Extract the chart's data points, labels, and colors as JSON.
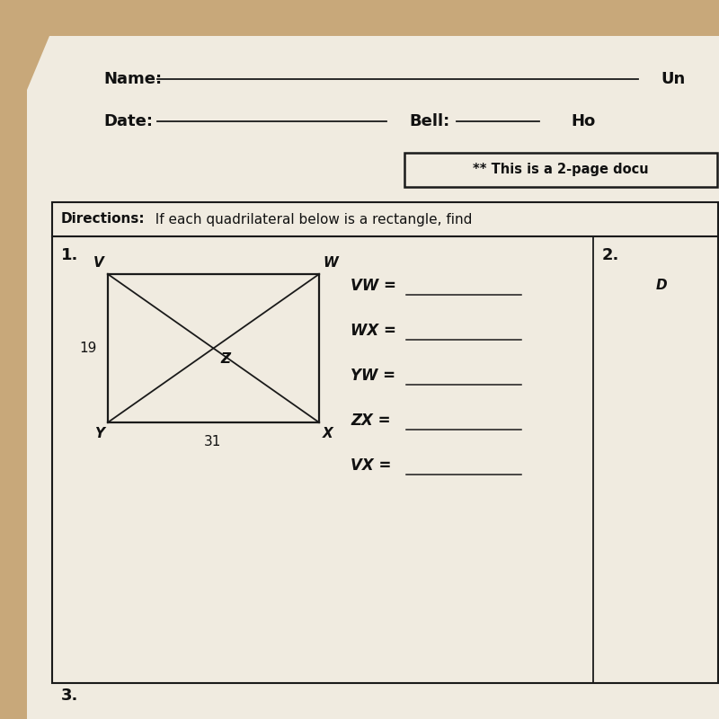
{
  "bg_tan": "#c8a87a",
  "paper_color": "#f0ebe0",
  "paper_inner": "#ede8db",
  "line_color": "#1a1a1a",
  "text_color": "#111111",
  "name_label": "Name:",
  "date_label": "Date:",
  "bell_label": "Bell:",
  "unit_label": "Un",
  "ho_label": "Ho",
  "two_page_text": "** This is a 2-page docu",
  "directions_bold": "Directions:",
  "directions_rest": "  If each quadrilateral below is a rectangle, find",
  "prob1": "1.",
  "prob2": "2.",
  "prob3": "3.",
  "corner_V": "V",
  "corner_W": "W",
  "corner_Y": "Y",
  "corner_X": "X",
  "center_Z": "Z",
  "label_19": "19",
  "label_31": "31",
  "label_D": "D",
  "equations": [
    "VW =",
    "WX =",
    "YW =",
    "ZX =",
    "VX ="
  ]
}
